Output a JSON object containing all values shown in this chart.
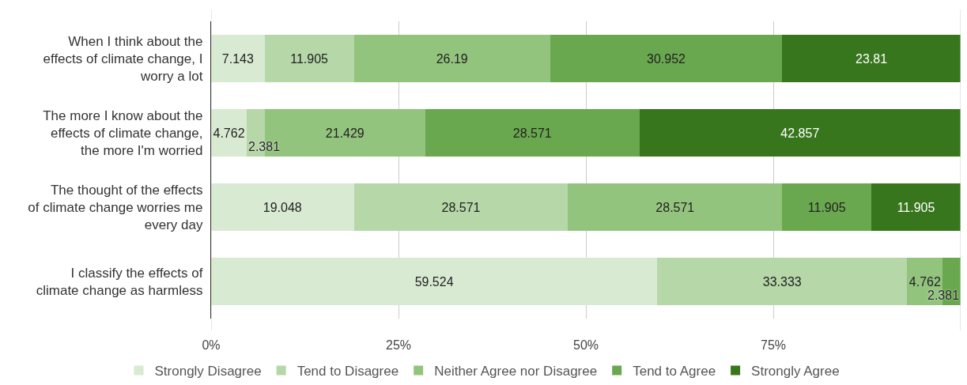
{
  "chart_data": {
    "type": "bar",
    "orientation": "horizontal",
    "stacked": true,
    "categories": [
      "When I think about the effects of climate change, I worry a lot",
      "The more I know about the effects of climate change, the more I'm worried",
      "The thought of the effects of climate change worries me every day",
      "I classify the effects of climate change as harmless"
    ],
    "series": [
      {
        "name": "Strongly Disagree",
        "color": "#d9ead3",
        "values": [
          7.143,
          4.762,
          19.048,
          59.524
        ]
      },
      {
        "name": "Tend to Disagree",
        "color": "#b6d7a8",
        "values": [
          11.905,
          2.381,
          28.571,
          33.333
        ]
      },
      {
        "name": "Neither Agree nor Disagree",
        "color": "#93c47d",
        "values": [
          26.19,
          21.429,
          28.571,
          4.762
        ]
      },
      {
        "name": "Tend to Agree",
        "color": "#6aa84f",
        "values": [
          30.952,
          28.571,
          11.905,
          2.381
        ]
      },
      {
        "name": "Strongly Agree",
        "color": "#38761d",
        "values": [
          23.81,
          42.857,
          11.905,
          null
        ]
      }
    ],
    "xlim": [
      0,
      100
    ],
    "xticks": [
      {
        "value": 0,
        "label": "0%"
      },
      {
        "value": 25,
        "label": "25%"
      },
      {
        "value": 50,
        "label": "50%"
      },
      {
        "value": 75,
        "label": "75%"
      },
      {
        "value": 100,
        "label": null
      }
    ],
    "grid": "x",
    "legend": "bottom",
    "data_labels": true
  }
}
